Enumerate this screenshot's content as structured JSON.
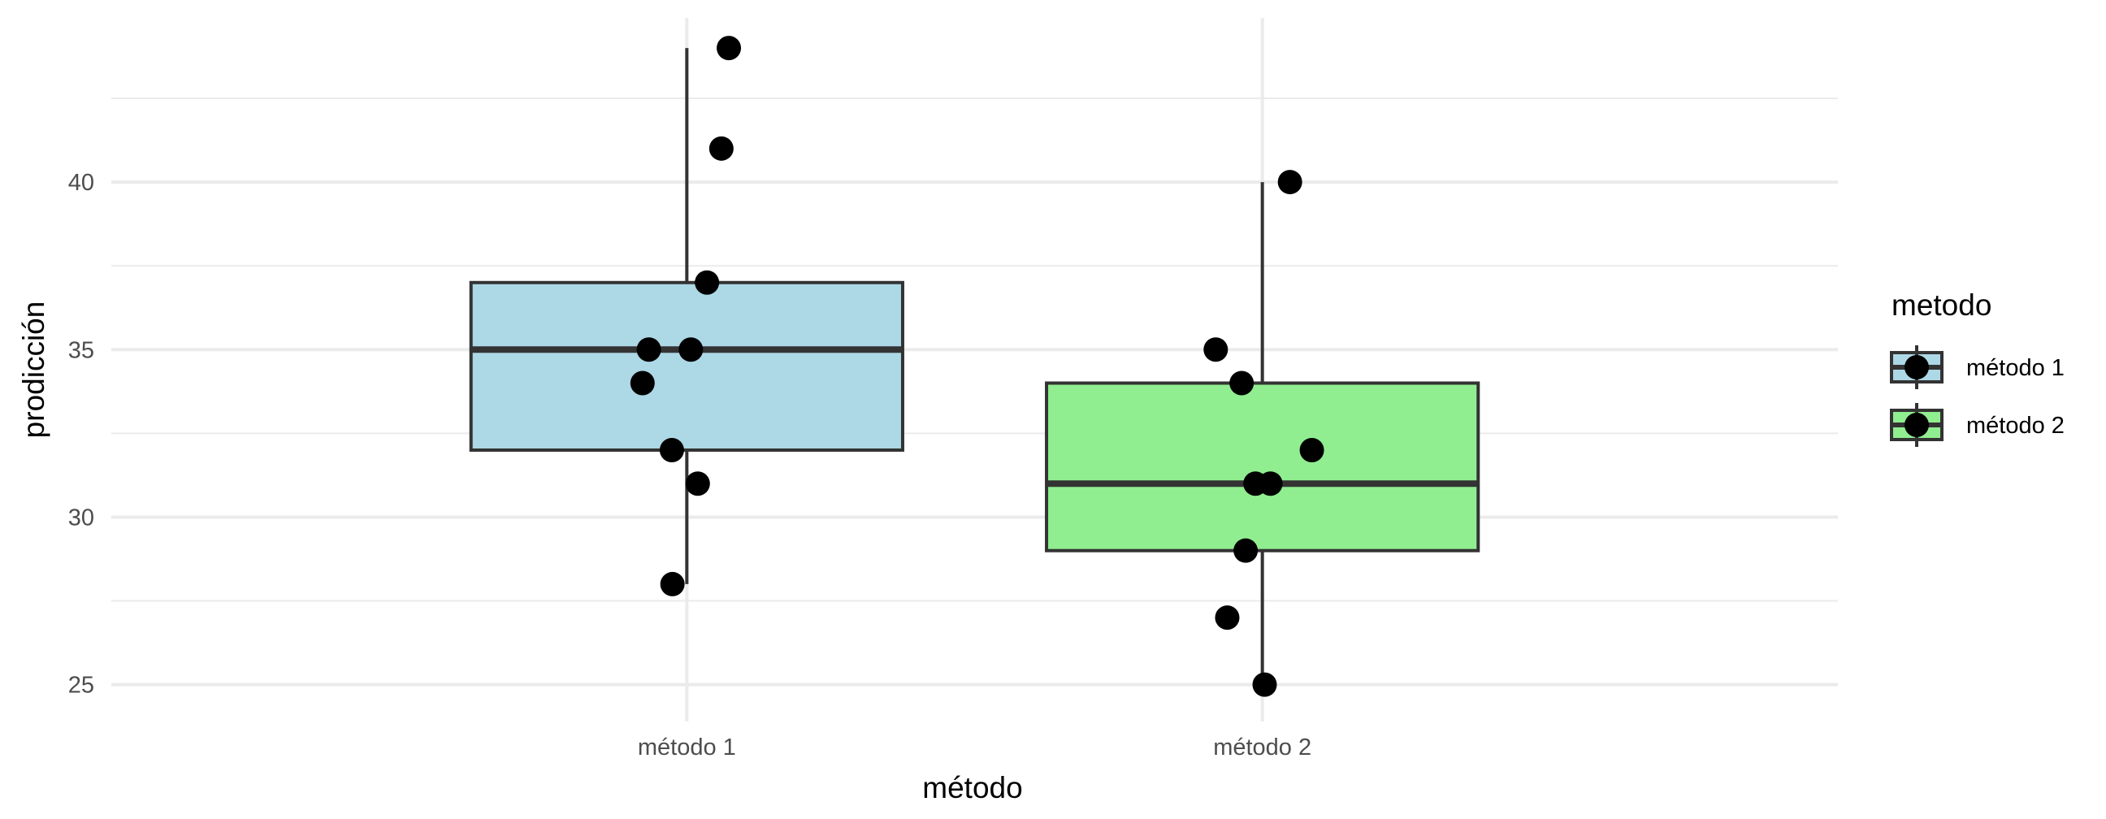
{
  "chart_data": {
    "type": "boxplot",
    "xlabel": "método",
    "ylabel": "prodicción",
    "categories": [
      "método 1",
      "método 2"
    ],
    "ylim": [
      23.9,
      44.9
    ],
    "yticks": [
      25,
      30,
      35,
      40
    ],
    "grid": true,
    "legend": {
      "title": "metodo",
      "position": "right",
      "entries": [
        "método 1",
        "método 2"
      ]
    },
    "colors": {
      "método 1": "#add8e6",
      "método 2": "#90ee90",
      "box_outline": "#333333",
      "points": "#000000",
      "grid": "#ebebeb"
    },
    "boxes": [
      {
        "category": "método 1",
        "whisker_low": 28,
        "q1": 32,
        "median": 35,
        "q3": 37,
        "whisker_high": 44
      },
      {
        "category": "método 2",
        "whisker_low": 25,
        "q1": 29,
        "median": 31,
        "q3": 34,
        "whisker_high": 40
      }
    ],
    "points": [
      {
        "category": "método 1",
        "jitter": 0.073,
        "y": 44
      },
      {
        "category": "método 1",
        "jitter": 0.06,
        "y": 41
      },
      {
        "category": "método 1",
        "jitter": 0.035,
        "y": 37
      },
      {
        "category": "método 1",
        "jitter": -0.066,
        "y": 35
      },
      {
        "category": "método 1",
        "jitter": 0.007,
        "y": 35
      },
      {
        "category": "método 1",
        "jitter": -0.077,
        "y": 34
      },
      {
        "category": "método 1",
        "jitter": -0.026,
        "y": 32
      },
      {
        "category": "método 1",
        "jitter": 0.019,
        "y": 31
      },
      {
        "category": "método 1",
        "jitter": -0.025,
        "y": 28
      },
      {
        "category": "método 2",
        "jitter": 0.048,
        "y": 40
      },
      {
        "category": "método 2",
        "jitter": -0.081,
        "y": 35
      },
      {
        "category": "método 2",
        "jitter": -0.036,
        "y": 34
      },
      {
        "category": "método 2",
        "jitter": 0.086,
        "y": 32
      },
      {
        "category": "método 2",
        "jitter": -0.012,
        "y": 31
      },
      {
        "category": "método 2",
        "jitter": 0.014,
        "y": 31
      },
      {
        "category": "método 2",
        "jitter": -0.029,
        "y": 29
      },
      {
        "category": "método 2",
        "jitter": -0.061,
        "y": 27
      },
      {
        "category": "método 2",
        "jitter": 0.004,
        "y": 25
      }
    ]
  }
}
